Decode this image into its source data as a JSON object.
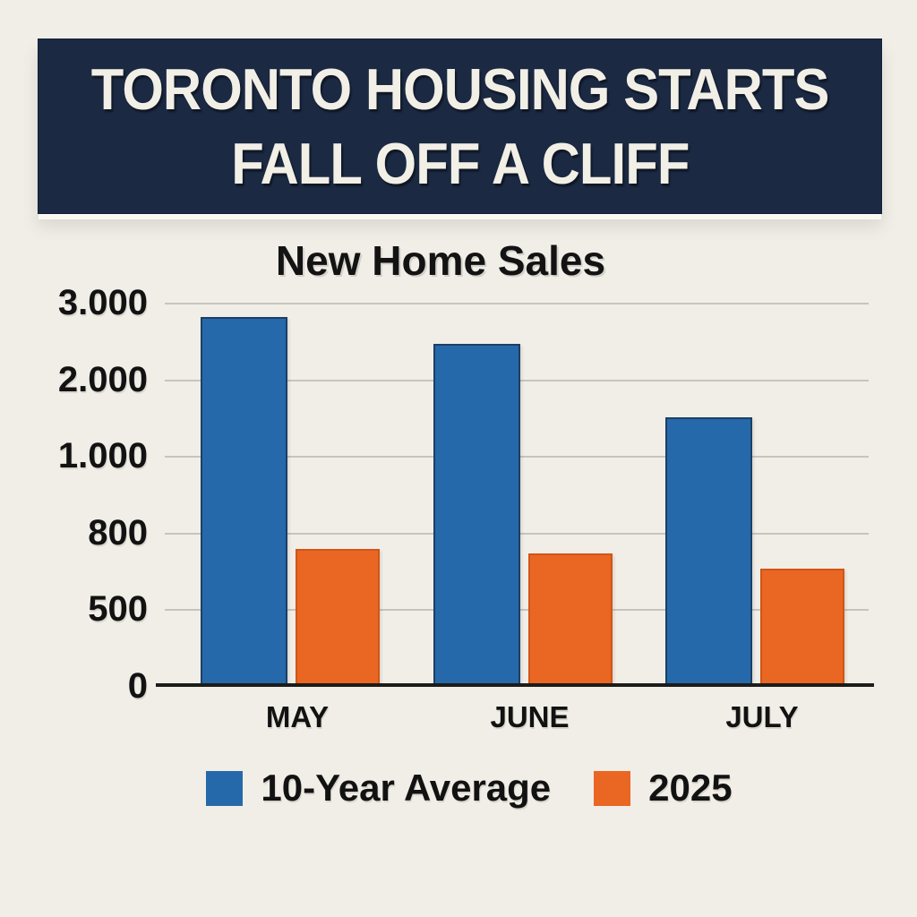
{
  "header": {
    "line1": "TORONTO HOUSING STARTS",
    "line2": "FALL OFF A CLIFF"
  },
  "chart_data": {
    "type": "bar",
    "title": "New Home Sales",
    "categories": [
      "MAY",
      "JUNE",
      "JULY"
    ],
    "series": [
      {
        "name": "10-Year Average",
        "color": "#2569aa",
        "values": [
          2750,
          2400,
          1450
        ]
      },
      {
        "name": "2025",
        "color": "#ea6623",
        "values": [
          720,
          700,
          640
        ]
      }
    ],
    "y_ticks": [
      {
        "label": "3.000",
        "value": 3000
      },
      {
        "label": "2.000",
        "value": 2000
      },
      {
        "label": "1.000",
        "value": 1000
      },
      {
        "label": "800",
        "value": 800
      },
      {
        "label": "500",
        "value": 500
      },
      {
        "label": "0",
        "value": 0
      }
    ],
    "ylim": [
      0,
      3000
    ],
    "xlabel": "",
    "ylabel": "",
    "grid": true,
    "legend_position": "bottom",
    "axis_scale_note": "tick labels evenly spaced (nonlinear value scale)"
  },
  "colors": {
    "background": "#f1eee7",
    "banner": "#1b2942",
    "banner_text": "#f2efe7",
    "bar_blue": "#2569aa",
    "bar_orange": "#ea6623",
    "gridline": "#c7c4bf",
    "axis": "#1d1d1b",
    "text": "#121212"
  }
}
